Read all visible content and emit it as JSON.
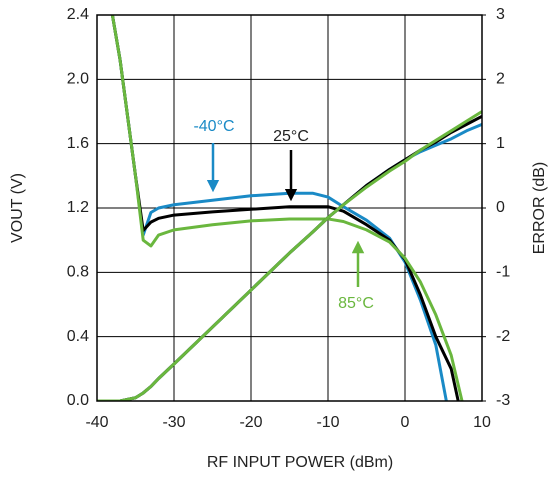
{
  "chart_data": {
    "type": "line",
    "x_label": "RF INPUT POWER (dBm)",
    "y_label": "VOUT (V)",
    "y2_label": "ERROR (dB)",
    "xlim": [
      -40,
      10
    ],
    "xticks": [
      -40,
      -30,
      -20,
      -10,
      0,
      10
    ],
    "ylim": [
      0,
      2.4
    ],
    "yticks": [
      {
        "value": 0,
        "label": "0.0"
      },
      0.4,
      0.8,
      1.2,
      1.6,
      {
        "value": 2,
        "label": "2.0"
      },
      2.4
    ],
    "y2lim": [
      -3,
      3
    ],
    "y2ticks": [
      -3,
      -2,
      -1,
      0,
      1,
      2,
      3
    ],
    "grid": true,
    "x": [
      -40,
      -38,
      -37,
      -36,
      -35,
      -34,
      -33,
      -32,
      -30,
      -25,
      -20,
      -15,
      -12,
      -10,
      -8,
      -5,
      -2,
      0,
      2,
      4,
      6,
      8,
      10
    ],
    "series": [
      {
        "name": "-40°C",
        "color": "#1a8ac6",
        "axis": "y2",
        "values": [
          null,
          3,
          2.3,
          1.4,
          0.5,
          -0.42,
          -0.07,
          0.0,
          0.05,
          0.12,
          0.19,
          0.23,
          0.23,
          0.17,
          0.02,
          -0.19,
          -0.47,
          -0.84,
          -1.43,
          -2.13,
          -3.4,
          null,
          null
        ]
      },
      {
        "name": "25°C",
        "color": "#000000",
        "axis": "y2",
        "values": [
          null,
          3,
          2.3,
          1.4,
          0.5,
          -0.35,
          -0.22,
          -0.16,
          -0.11,
          -0.06,
          -0.02,
          0.02,
          0.02,
          0.02,
          -0.05,
          -0.26,
          -0.5,
          -0.8,
          -1.35,
          -2.0,
          -2.5,
          -3.6,
          null
        ]
      },
      {
        "name": "85°C",
        "color": "#6ab73e",
        "axis": "y2",
        "values": [
          null,
          3,
          2.3,
          1.4,
          0.5,
          -0.5,
          -0.59,
          -0.42,
          -0.34,
          -0.26,
          -0.2,
          -0.17,
          -0.17,
          -0.17,
          -0.21,
          -0.34,
          -0.53,
          -0.78,
          -1.15,
          -1.66,
          -2.29,
          -3.3,
          null
        ]
      },
      {
        "color": "#1a8ac6",
        "values": [
          0,
          0,
          0,
          0.01,
          0.02,
          0.05,
          0.09,
          0.14,
          0.23,
          0.46,
          0.69,
          0.92,
          1.05,
          1.14,
          1.22,
          1.34,
          1.44,
          1.5,
          1.55,
          1.59,
          1.63,
          1.68,
          1.72
        ]
      },
      {
        "color": "#000000",
        "values": [
          0,
          0,
          0,
          0.01,
          0.02,
          0.05,
          0.09,
          0.14,
          0.23,
          0.46,
          0.69,
          0.92,
          1.05,
          1.14,
          1.22,
          1.34,
          1.44,
          1.5,
          1.56,
          1.61,
          1.67,
          1.72,
          1.77
        ]
      },
      {
        "color": "#6ab73e",
        "values": [
          0,
          0,
          0,
          0.01,
          0.02,
          0.05,
          0.09,
          0.14,
          0.23,
          0.46,
          0.69,
          0.92,
          1.05,
          1.14,
          1.22,
          1.33,
          1.43,
          1.49,
          1.56,
          1.62,
          1.68,
          1.74,
          1.8
        ]
      }
    ]
  }
}
